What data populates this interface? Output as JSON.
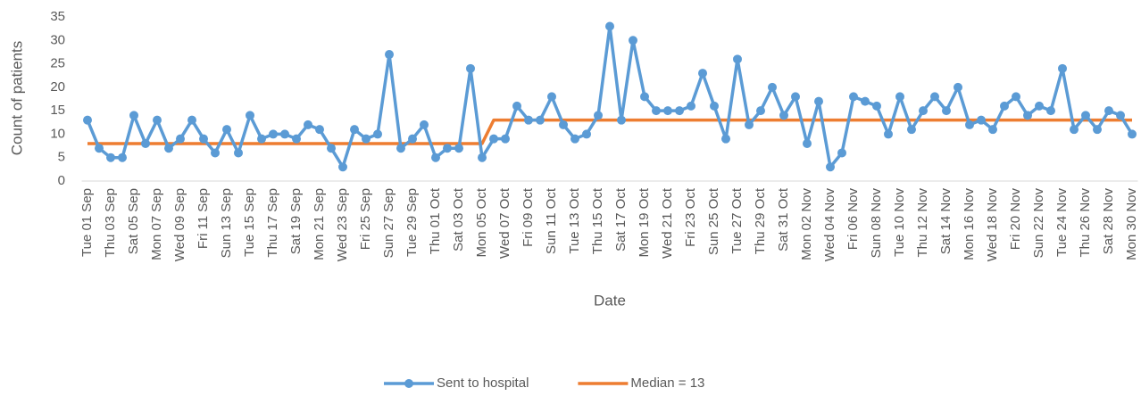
{
  "chart_data": {
    "type": "line",
    "ylabel": "Count of patients",
    "xlabel": "Date",
    "categories": [
      "Tue 01 Sep",
      null,
      "Thu 03 Sep",
      null,
      "Sat 05 Sep",
      null,
      "Mon 07 Sep",
      null,
      "Wed 09 Sep",
      null,
      "Fri 11 Sep",
      null,
      "Sun 13 Sep",
      null,
      "Tue 15 Sep",
      null,
      "Thu 17 Sep",
      null,
      "Sat 19 Sep",
      null,
      "Mon 21 Sep",
      null,
      "Wed 23 Sep",
      null,
      "Fri 25 Sep",
      null,
      "Sun 27 Sep",
      null,
      "Tue 29 Sep",
      null,
      "Thu 01 Oct",
      null,
      "Sat 03 Oct",
      null,
      "Mon 05 Oct",
      null,
      "Wed 07 Oct",
      null,
      "Fri 09 Oct",
      null,
      "Sun 11 Oct",
      null,
      "Tue 13 Oct",
      null,
      "Thu 15 Oct",
      null,
      "Sat 17 Oct",
      null,
      "Mon 19 Oct",
      null,
      "Wed 21 Oct",
      null,
      "Fri 23 Oct",
      null,
      "Sun 25 Oct",
      null,
      "Tue 27 Oct",
      null,
      "Thu 29 Oct",
      null,
      "Sat 31 Oct",
      null,
      "Mon 02 Nov",
      null,
      "Wed 04 Nov",
      null,
      "Fri 06 Nov",
      null,
      "Sun 08 Nov",
      null,
      "Tue 10 Nov",
      null,
      "Thu 12 Nov",
      null,
      "Sat 14 Nov",
      null,
      "Mon 16 Nov",
      null,
      "Wed 18 Nov",
      null,
      "Fri 20 Nov",
      null,
      "Sun 22 Nov",
      null,
      "Tue 24 Nov",
      null,
      "Thu 26 Nov",
      null,
      "Sat 28 Nov",
      null,
      "Mon 30 Nov"
    ],
    "series": [
      {
        "name": "Sent to hospital",
        "color": "#5b9bd5",
        "marker": true,
        "values": [
          13,
          7,
          5,
          5,
          14,
          8,
          13,
          7,
          9,
          13,
          9,
          6,
          11,
          6,
          14,
          9,
          10,
          10,
          9,
          12,
          11,
          7,
          3,
          11,
          9,
          10,
          27,
          7,
          9,
          12,
          5,
          7,
          7,
          24,
          5,
          9,
          9,
          16,
          13,
          13,
          18,
          12,
          9,
          10,
          14,
          33,
          13,
          30,
          18,
          15,
          15,
          15,
          16,
          23,
          16,
          9,
          26,
          12,
          15,
          20,
          14,
          18,
          8,
          17,
          3,
          6,
          18,
          17,
          16,
          10,
          18,
          11,
          15,
          18,
          15,
          20,
          12,
          13,
          11,
          16,
          18,
          14,
          16,
          15,
          24,
          11,
          14,
          11,
          15,
          14,
          10
        ]
      },
      {
        "name": "Median = 13",
        "color": "#ed7d31",
        "marker": false,
        "values": [
          8,
          8,
          8,
          8,
          8,
          8,
          8,
          8,
          8,
          8,
          8,
          8,
          8,
          8,
          8,
          8,
          8,
          8,
          8,
          8,
          8,
          8,
          8,
          8,
          8,
          8,
          8,
          8,
          8,
          8,
          8,
          8,
          8,
          8,
          8,
          13,
          13,
          13,
          13,
          13,
          13,
          13,
          13,
          13,
          13,
          13,
          13,
          13,
          13,
          13,
          13,
          13,
          13,
          13,
          13,
          13,
          13,
          13,
          13,
          13,
          13,
          13,
          13,
          13,
          13,
          13,
          13,
          13,
          13,
          13,
          13,
          13,
          13,
          13,
          13,
          13,
          13,
          13,
          13,
          13,
          13,
          13,
          13,
          13,
          13,
          13,
          13,
          13,
          13,
          13,
          13
        ]
      }
    ],
    "ylim": [
      0,
      35
    ],
    "yticks": [
      0,
      5,
      10,
      15,
      20,
      25,
      30,
      35
    ],
    "grid": false,
    "legend": "bottom"
  }
}
